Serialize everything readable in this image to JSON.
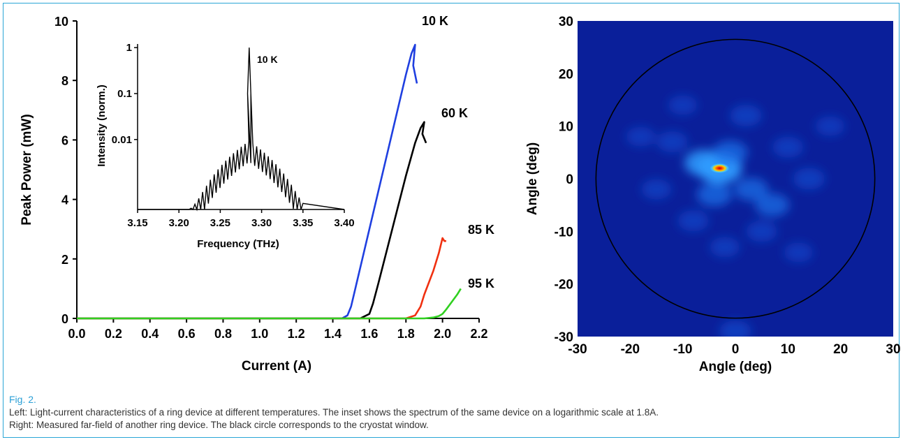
{
  "caption": {
    "label": "Fig. 2.",
    "line_left": "Left: Light-current characteristics of a ring device at different temperatures. The inset shows the spectrum of the same device on a logarithmic scale at 1.8A.",
    "line_right": "Right: Measured far-field of another ring device. The black circle corresponds to the cryostat window."
  },
  "colors": {
    "frame": "#2aa6d6",
    "caption_label": "#2a9fd6",
    "series_10K": "#1f3fe0",
    "series_60K": "#000000",
    "series_85K": "#f03010",
    "series_95K": "#30d020",
    "farfield_background": "#0a1f9a"
  },
  "chart_data": [
    {
      "type": "line",
      "xlabel": "Current (A)",
      "ylabel": "Peak Power (mW)",
      "xlim": [
        0.0,
        2.2
      ],
      "ylim": [
        0,
        10
      ],
      "x_ticks": [
        "0.0",
        "0.2",
        "0.4",
        "0.6",
        "0.8",
        "1.0",
        "1.2",
        "1.4",
        "1.6",
        "1.8",
        "2.0",
        "2.2"
      ],
      "y_ticks": [
        "0",
        "2",
        "4",
        "6",
        "8",
        "10"
      ],
      "grid": false,
      "series": [
        {
          "name": "10 K",
          "color": "#1f3fe0",
          "x": [
            0.0,
            1.45,
            1.48,
            1.5,
            1.55,
            1.6,
            1.65,
            1.7,
            1.75,
            1.8,
            1.83,
            1.85,
            1.84,
            1.86
          ],
          "y": [
            0,
            0,
            0.1,
            0.4,
            1.7,
            3.0,
            4.3,
            5.6,
            6.9,
            8.2,
            8.9,
            9.2,
            8.5,
            7.9
          ]
        },
        {
          "name": "60 K",
          "color": "#000000",
          "x": [
            0.0,
            1.55,
            1.6,
            1.62,
            1.65,
            1.7,
            1.75,
            1.8,
            1.85,
            1.88,
            1.9,
            1.89,
            1.91
          ],
          "y": [
            0,
            0,
            0.15,
            0.5,
            1.2,
            2.4,
            3.6,
            4.8,
            5.9,
            6.4,
            6.6,
            6.2,
            5.9
          ]
        },
        {
          "name": "85 K",
          "color": "#f03010",
          "x": [
            0.0,
            1.8,
            1.85,
            1.88,
            1.9,
            1.95,
            1.98,
            2.0,
            2.01,
            2.02
          ],
          "y": [
            0,
            0,
            0.1,
            0.4,
            0.8,
            1.6,
            2.2,
            2.7,
            2.6,
            2.6
          ]
        },
        {
          "name": "95 K",
          "color": "#30d020",
          "x": [
            0.0,
            1.9,
            1.95,
            1.98,
            2.0,
            2.02,
            2.05,
            2.08,
            2.1
          ],
          "y": [
            0,
            0,
            0.03,
            0.08,
            0.15,
            0.3,
            0.55,
            0.8,
            1.0
          ]
        }
      ]
    },
    {
      "type": "line",
      "xlabel": "Frequency (THz)",
      "ylabel": "Intensity (norm.)",
      "xlim": [
        3.15,
        3.4
      ],
      "yscale": "log",
      "ylim": [
        0.0003,
        1.2
      ],
      "x_ticks": [
        "3.15",
        "3.20",
        "3.25",
        "3.30",
        "3.35",
        "3.40"
      ],
      "y_ticks": [
        "0.01",
        "0.1",
        "1"
      ],
      "annotation": "10 K",
      "series": [
        {
          "name": "10 K",
          "color": "#000000",
          "peak_x": 3.285,
          "peak_y": 1.0,
          "fringe_start": 3.21,
          "fringe_end": 3.35,
          "fringe_peak": 0.009,
          "baseline": 0.0003
        }
      ]
    },
    {
      "type": "heatmap",
      "xlabel": "Angle (deg)",
      "ylabel": "Angle (deg)",
      "xlim": [
        -30,
        30
      ],
      "ylim": [
        -30,
        30
      ],
      "x_ticks": [
        "-30",
        "-20",
        "-10",
        "0",
        "10",
        "20",
        "30"
      ],
      "y_ticks": [
        "-30",
        "-20",
        "-10",
        "0",
        "10",
        "20",
        "30"
      ],
      "circle_radius_deg": 26.5,
      "peak": {
        "x": -3,
        "y": 2
      },
      "blobs": [
        {
          "x": -3,
          "y": 2,
          "s": 1.0
        },
        {
          "x": -6,
          "y": 3,
          "s": 0.7
        },
        {
          "x": -1,
          "y": 5,
          "s": 0.5
        },
        {
          "x": -4,
          "y": -3,
          "s": 0.5
        },
        {
          "x": 3,
          "y": -2,
          "s": 0.45
        },
        {
          "x": 7,
          "y": -5,
          "s": 0.45
        },
        {
          "x": 2,
          "y": 12,
          "s": 0.35
        },
        {
          "x": -12,
          "y": 7,
          "s": 0.3
        },
        {
          "x": 10,
          "y": 6,
          "s": 0.3
        },
        {
          "x": -8,
          "y": -8,
          "s": 0.3
        },
        {
          "x": 14,
          "y": 0,
          "s": 0.35
        },
        {
          "x": -15,
          "y": -2,
          "s": 0.25
        },
        {
          "x": 5,
          "y": -10,
          "s": 0.3
        },
        {
          "x": -2,
          "y": -13,
          "s": 0.25
        },
        {
          "x": -10,
          "y": 14,
          "s": 0.2
        },
        {
          "x": 12,
          "y": -14,
          "s": 0.2
        },
        {
          "x": -18,
          "y": 8,
          "s": 0.2
        },
        {
          "x": 18,
          "y": 10,
          "s": 0.2
        },
        {
          "x": 0,
          "y": -29,
          "s": 0.35
        }
      ]
    }
  ],
  "labels": {
    "left_ylabel": "Peak Power (mW)",
    "left_xlabel": "Current (A)",
    "inset_ylabel": "Intensity (norm.)",
    "inset_xlabel": "Frequency (THz)",
    "inset_annotation": "10 K",
    "right_ylabel": "Angle (deg)",
    "right_xlabel": "Angle (deg)"
  }
}
